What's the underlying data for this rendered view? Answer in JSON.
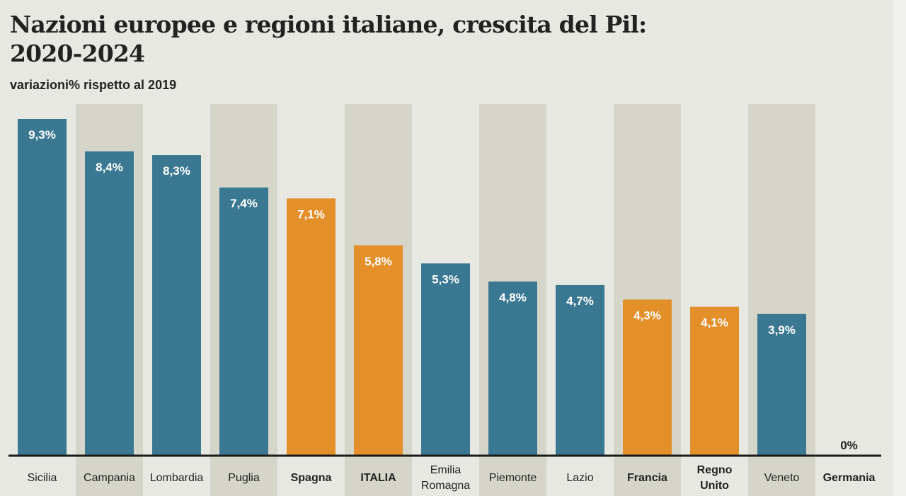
{
  "title_line1": "Nazioni europee e regioni italiane, crescita del Pil:",
  "title_line2": "2020-2024",
  "subtitle": "variazioni% rispetto al 2019",
  "colors": {
    "region": "#3a7891",
    "nation": "#e38f2a",
    "shade": "#d5d5ca",
    "background": "#e8e8e3"
  },
  "chart_data": {
    "type": "bar",
    "title": "Nazioni europee e regioni italiane, crescita del Pil: 2020-2024",
    "subtitle": "variazioni% rispetto al 2019",
    "categories": [
      {
        "label": [
          "Sicilia"
        ],
        "value": 9.3,
        "text": "9,3%",
        "kind": "region"
      },
      {
        "label": [
          "Campania"
        ],
        "value": 8.4,
        "text": "8,4%",
        "kind": "region"
      },
      {
        "label": [
          "Lombardia"
        ],
        "value": 8.3,
        "text": "8,3%",
        "kind": "region"
      },
      {
        "label": [
          "Puglia"
        ],
        "value": 7.4,
        "text": "7,4%",
        "kind": "region"
      },
      {
        "label": [
          "Spagna"
        ],
        "value": 7.1,
        "text": "7,1%",
        "kind": "nation"
      },
      {
        "label": [
          "ITALIA"
        ],
        "value": 5.8,
        "text": "5,8%",
        "kind": "nation"
      },
      {
        "label": [
          "Emilia",
          "Romagna"
        ],
        "value": 5.3,
        "text": "5,3%",
        "kind": "region"
      },
      {
        "label": [
          "Piemonte"
        ],
        "value": 4.8,
        "text": "4,8%",
        "kind": "region"
      },
      {
        "label": [
          "Lazio"
        ],
        "value": 4.7,
        "text": "4,7%",
        "kind": "region"
      },
      {
        "label": [
          "Francia"
        ],
        "value": 4.3,
        "text": "4,3%",
        "kind": "nation"
      },
      {
        "label": [
          "Regno",
          "Unito"
        ],
        "value": 4.1,
        "text": "4,1%",
        "kind": "nation"
      },
      {
        "label": [
          "Veneto"
        ],
        "value": 3.9,
        "text": "3,9%",
        "kind": "region"
      },
      {
        "label": [
          "Germania"
        ],
        "value": 0,
        "text": "0%",
        "kind": "nation"
      }
    ],
    "ylim": [
      0,
      9.3
    ],
    "grid": false
  }
}
